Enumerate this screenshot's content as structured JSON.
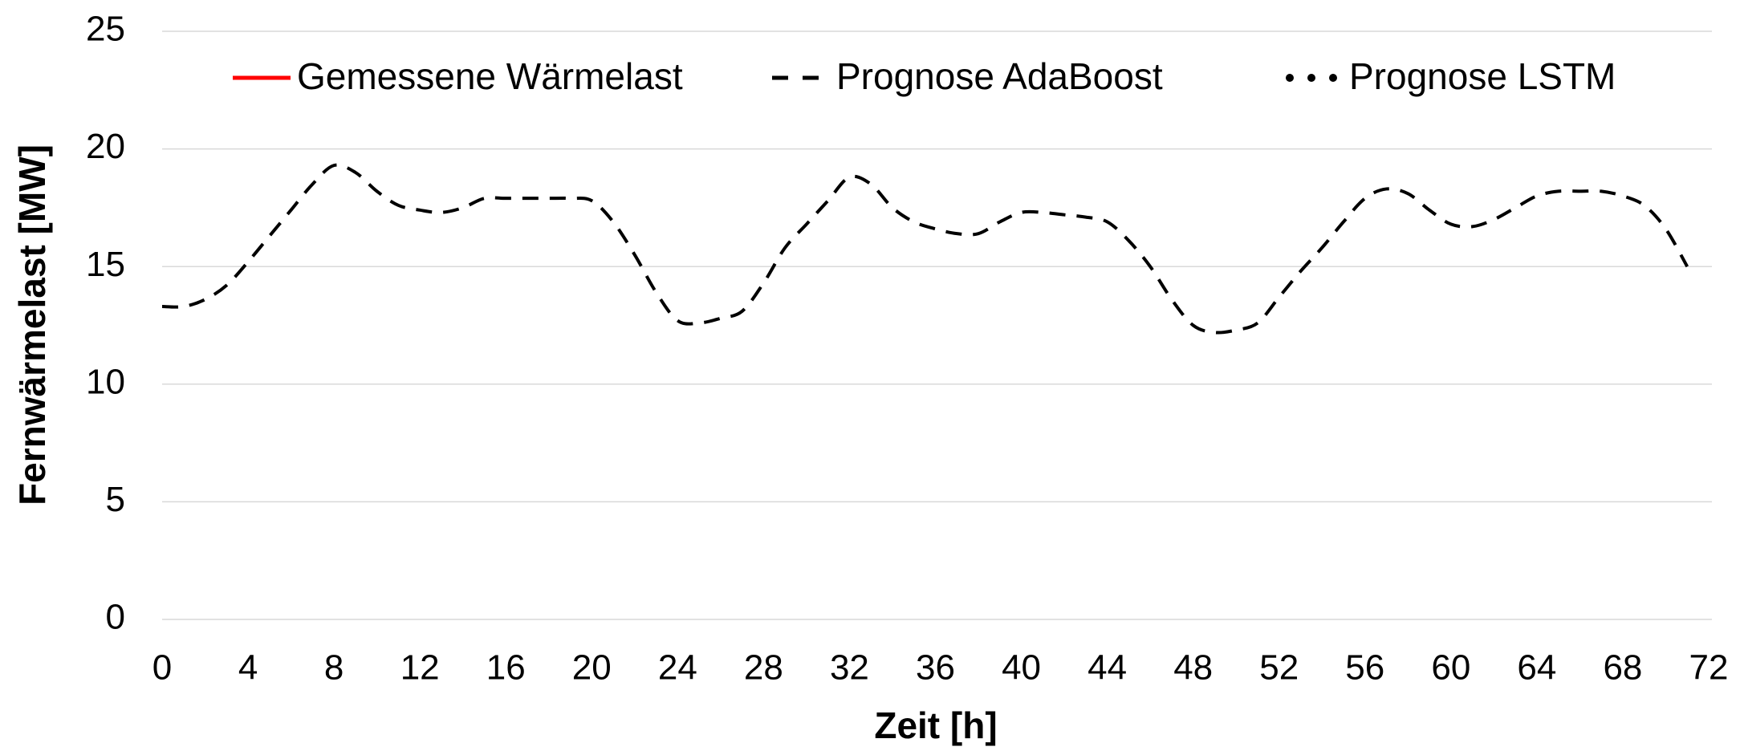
{
  "chart_data": {
    "type": "line",
    "x_label": "Zeit [h]",
    "y_label": "Fernwärmelast [MW]",
    "x": [
      0,
      1,
      2,
      3,
      4,
      5,
      6,
      7,
      8,
      9,
      10,
      11,
      12,
      13,
      14,
      15,
      16,
      17,
      18,
      19,
      20,
      21,
      22,
      23,
      24,
      25,
      26,
      27,
      28,
      29,
      30,
      31,
      32,
      33,
      34,
      35,
      36,
      37,
      38,
      39,
      40,
      41,
      42,
      43,
      44,
      45,
      46,
      47,
      48,
      49,
      50,
      51,
      52,
      53,
      54,
      55,
      56,
      57,
      58,
      59,
      60,
      61,
      62,
      63,
      64,
      65,
      66,
      67,
      68,
      69,
      70,
      71
    ],
    "series": [
      {
        "name": "Gemessene Wärmelast",
        "color": "#ff0000",
        "dash": "solid",
        "values": [
          null,
          null,
          null,
          null,
          null,
          null,
          null,
          null,
          null,
          null,
          null,
          null,
          null,
          null,
          null,
          null,
          null,
          null,
          null,
          null,
          null,
          null,
          null,
          null,
          null,
          null,
          null,
          null,
          null,
          null,
          null,
          null,
          null,
          null,
          null,
          null,
          null,
          null,
          null,
          null,
          null,
          null,
          null,
          null,
          null,
          null,
          null,
          null,
          null,
          null,
          null,
          null,
          null,
          null,
          null,
          null,
          null,
          null,
          null,
          null,
          null,
          null,
          null,
          null,
          null,
          null,
          null,
          null,
          null,
          null,
          null,
          null
        ]
      },
      {
        "name": "Prognose AdaBoost",
        "color": "#000000",
        "dash": "dashed",
        "values": [
          13.3,
          13.3,
          13.6,
          14.2,
          15.2,
          16.3,
          17.4,
          18.5,
          19.3,
          19.0,
          18.2,
          17.6,
          17.4,
          17.3,
          17.5,
          17.9,
          17.9,
          17.9,
          17.9,
          17.9,
          17.8,
          16.9,
          15.5,
          13.9,
          12.7,
          12.6,
          12.8,
          13.1,
          14.3,
          15.8,
          16.8,
          17.8,
          18.8,
          18.5,
          17.5,
          16.9,
          16.6,
          16.4,
          16.4,
          16.9,
          17.3,
          17.3,
          17.2,
          17.1,
          16.9,
          16.1,
          15.0,
          13.6,
          12.5,
          12.2,
          12.3,
          12.6,
          13.7,
          14.8,
          15.8,
          16.9,
          17.9,
          18.3,
          18.1,
          17.4,
          16.8,
          16.7,
          17.0,
          17.5,
          18.0,
          18.2,
          18.2,
          18.2,
          18.0,
          17.6,
          16.6,
          15.0
        ]
      },
      {
        "name": "Prognose LSTM",
        "color": "#000000",
        "dash": "dotted",
        "values": [
          null,
          null,
          null,
          null,
          null,
          null,
          null,
          null,
          null,
          null,
          null,
          null,
          null,
          null,
          null,
          null,
          null,
          null,
          null,
          null,
          null,
          null,
          null,
          null,
          null,
          null,
          null,
          null,
          null,
          null,
          null,
          null,
          null,
          null,
          null,
          null,
          null,
          null,
          null,
          null,
          null,
          null,
          null,
          null,
          null,
          null,
          null,
          null,
          null,
          null,
          null,
          null,
          null,
          null,
          null,
          null,
          null,
          null,
          null,
          null,
          null,
          null,
          null,
          null,
          null,
          null,
          null,
          null,
          null,
          null,
          null,
          null
        ]
      }
    ],
    "xlim": [
      0,
      72
    ],
    "xticks": [
      0,
      4,
      8,
      12,
      16,
      20,
      24,
      28,
      32,
      36,
      40,
      44,
      48,
      52,
      56,
      60,
      64,
      68,
      72
    ],
    "ylim": [
      0,
      25
    ],
    "yticks": [
      0,
      5,
      10,
      15,
      20,
      25
    ],
    "grid": true,
    "legend": "top"
  }
}
